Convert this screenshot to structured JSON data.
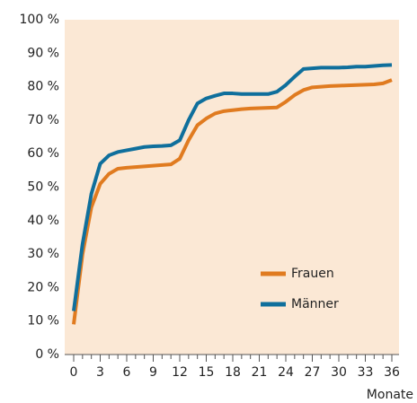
{
  "chart_data": {
    "type": "line",
    "xlabel": "Monate",
    "x": [
      0,
      1,
      2,
      3,
      4,
      5,
      6,
      7,
      8,
      9,
      10,
      11,
      12,
      13,
      14,
      15,
      16,
      17,
      18,
      19,
      20,
      21,
      22,
      23,
      24,
      25,
      26,
      27,
      28,
      29,
      30,
      31,
      32,
      33,
      34,
      35,
      36
    ],
    "series": [
      {
        "name": "Frauen",
        "color": "#e07b20",
        "values": [
          9,
          30,
          44,
          51,
          54,
          55.5,
          55.8,
          56,
          56.2,
          56.4,
          56.6,
          56.8,
          58.5,
          64,
          68.5,
          70.5,
          72,
          72.7,
          73,
          73.3,
          73.5,
          73.6,
          73.7,
          73.8,
          75.5,
          77.5,
          79,
          79.8,
          80,
          80.2,
          80.3,
          80.4,
          80.5,
          80.6,
          80.7,
          81,
          82
        ]
      },
      {
        "name": "Männer",
        "color": "#0f6f9c",
        "values": [
          13,
          33,
          48,
          57,
          59.5,
          60.5,
          61,
          61.5,
          62,
          62.2,
          62.3,
          62.5,
          64,
          70,
          75,
          76.5,
          77.3,
          78,
          78,
          77.8,
          77.8,
          77.8,
          77.8,
          78.5,
          80.5,
          83,
          85.3,
          85.5,
          85.7,
          85.7,
          85.7,
          85.8,
          86,
          86,
          86.2,
          86.4,
          86.5
        ]
      }
    ],
    "xlim": [
      0,
      36
    ],
    "xticks": [
      0,
      3,
      6,
      9,
      12,
      15,
      18,
      21,
      24,
      27,
      30,
      33,
      36
    ],
    "ylim": [
      0,
      100
    ],
    "yticks": [
      {
        "value": 0,
        "label": "0 %"
      },
      {
        "value": 10,
        "label": "10 %"
      },
      {
        "value": 20,
        "label": "20 %"
      },
      {
        "value": 30,
        "label": "30 %"
      },
      {
        "value": 40,
        "label": "40 %"
      },
      {
        "value": 50,
        "label": "50 %"
      },
      {
        "value": 60,
        "label": "60 %"
      },
      {
        "value": 70,
        "label": "70 %"
      },
      {
        "value": 80,
        "label": "80 %"
      },
      {
        "value": 90,
        "label": "90 %"
      },
      {
        "value": 100,
        "label": "100 %"
      }
    ],
    "grid": false,
    "legend": "lower right",
    "background": "#fbe8d5"
  }
}
